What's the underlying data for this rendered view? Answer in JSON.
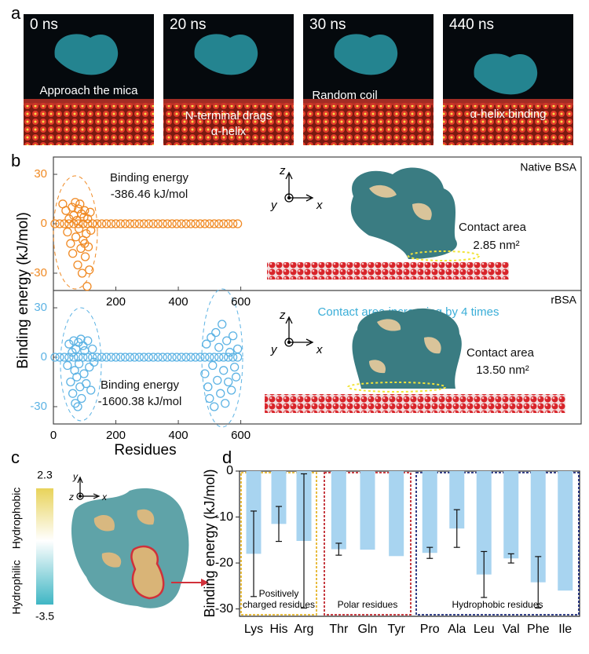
{
  "panel_a": {
    "label": "a",
    "frames": [
      {
        "time": "0 ns",
        "caption": [
          "Approach the mica"
        ]
      },
      {
        "time": "20 ns",
        "caption": [
          "N-terminal drags",
          "α-helix"
        ]
      },
      {
        "time": "30 ns",
        "caption": [
          "Random coil"
        ]
      },
      {
        "time": "440 ns",
        "caption": [
          "α-helix binding"
        ]
      }
    ]
  },
  "panel_b": {
    "label": "b",
    "ylabel": "Binding energy (kJ/mol)",
    "xlabel": "Residues",
    "axis_glyphs": [
      "z",
      "y",
      "x"
    ]
  },
  "panel_c": {
    "label": "c",
    "colorbar_max": "2.3",
    "colorbar_min": "-3.5",
    "top_label": "Hydrophobic",
    "bottom_label": "Hydrophilic",
    "axis_glyphs": [
      "y",
      "z",
      "x"
    ]
  },
  "panel_d": {
    "label": "d"
  },
  "chart_data": [
    {
      "type": "scatter",
      "name": "Native BSA",
      "energy_title": "Binding energy",
      "energy_value": "-386.46 kJ/mol",
      "contact_title": "Contact area",
      "contact_value": "2.85 nm²",
      "xlim": [
        0,
        1690
      ],
      "xticks": [
        200,
        400,
        600
      ],
      "ylim": [
        -40.5,
        40.5
      ],
      "yticks": [
        30,
        0,
        -30
      ],
      "series": [
        {
          "color": "#f08a24",
          "x": [
            5,
            20,
            35,
            50,
            65,
            80,
            95,
            110,
            125,
            140,
            155,
            170,
            185,
            200,
            215,
            230,
            245,
            260,
            275,
            290,
            305,
            320,
            335,
            350,
            365,
            380,
            395,
            410,
            425,
            440,
            455,
            470,
            485,
            500,
            515,
            530,
            545,
            560,
            575,
            590,
            30,
            40,
            45,
            50,
            55,
            60,
            62,
            65,
            70,
            72,
            75,
            78,
            80,
            82,
            85,
            88,
            90,
            92,
            95,
            98,
            100,
            102,
            105,
            108,
            110,
            112,
            115,
            118,
            120,
            100
          ],
          "values": [
            0,
            0,
            0,
            0,
            0,
            0,
            0,
            0,
            0,
            0,
            0,
            0,
            0,
            0,
            0,
            0,
            0,
            0,
            0,
            0,
            0,
            0,
            0,
            0,
            0,
            0,
            0,
            0,
            0,
            0,
            0,
            0,
            0,
            0,
            0,
            0,
            0,
            0,
            0,
            0,
            12,
            8,
            -5,
            3,
            -12,
            10,
            -18,
            5,
            13,
            -8,
            2,
            -25,
            9,
            -3,
            12,
            -15,
            6,
            -30,
            -10,
            4,
            8,
            -20,
            -6,
            -38,
            3,
            -14,
            -28,
            7,
            -4,
            -12
          ]
        }
      ]
    },
    {
      "type": "scatter",
      "name": "rBSA",
      "headline": "Contact area increasing by 4 times",
      "energy_title": "Binding energy",
      "energy_value": "-1600.38 kJ/mol",
      "contact_title": "Contact area",
      "contact_value": "13.50 nm²",
      "xlim": [
        0,
        1690
      ],
      "xticks": [
        0,
        200,
        400,
        600
      ],
      "ylim": [
        -40.5,
        40.5
      ],
      "yticks": [
        30,
        0,
        -30
      ],
      "series": [
        {
          "color": "#5db3e4",
          "x": [
            5,
            20,
            35,
            50,
            65,
            80,
            95,
            110,
            125,
            140,
            155,
            170,
            185,
            200,
            215,
            230,
            245,
            260,
            275,
            290,
            305,
            320,
            335,
            350,
            365,
            380,
            395,
            410,
            425,
            440,
            455,
            470,
            485,
            500,
            515,
            530,
            545,
            560,
            575,
            590,
            45,
            50,
            55,
            60,
            62,
            65,
            68,
            70,
            72,
            75,
            78,
            80,
            82,
            85,
            88,
            90,
            95,
            98,
            100,
            105,
            110,
            115,
            120,
            125,
            130,
            485,
            490,
            495,
            500,
            505,
            510,
            515,
            520,
            525,
            530,
            535,
            540,
            545,
            550,
            555,
            560,
            565,
            570,
            575,
            580,
            585,
            590
          ],
          "values": [
            0,
            0,
            0,
            0,
            0,
            0,
            0,
            0,
            0,
            0,
            0,
            0,
            0,
            0,
            0,
            0,
            0,
            0,
            0,
            0,
            0,
            0,
            0,
            0,
            0,
            0,
            0,
            0,
            0,
            0,
            0,
            0,
            0,
            0,
            0,
            0,
            0,
            0,
            0,
            0,
            -5,
            8,
            -15,
            3,
            -22,
            10,
            -8,
            -28,
            5,
            -12,
            -30,
            9,
            -4,
            -18,
            11,
            -25,
            7,
            -10,
            4,
            -16,
            10,
            -6,
            -20,
            5,
            -3,
            -10,
            8,
            -18,
            -25,
            12,
            -5,
            -30,
            15,
            -14,
            6,
            -22,
            20,
            -8,
            -28,
            10,
            -15,
            3,
            -20,
            13,
            -6,
            -12,
            5
          ]
        }
      ]
    },
    {
      "type": "bar",
      "ylabel": "Binding energy (kJ/mol)",
      "ylim": [
        -31.6,
        0
      ],
      "yticks": [
        0,
        -10,
        -20,
        -30
      ],
      "color": "#a8d4f0",
      "groups": [
        {
          "label": [
            "Positively",
            "charged residues"
          ],
          "border_color": "#e5b52a",
          "categories": [
            "Lys",
            "His",
            "Arg"
          ],
          "values": [
            -18,
            -11.5,
            -15.2
          ],
          "errors": [
            9.3,
            3.8,
            14.6
          ]
        },
        {
          "label": [
            "Polar residues"
          ],
          "border_color": "#c0262d",
          "categories": [
            "Thr",
            "Gln",
            "Tyr"
          ],
          "values": [
            -17,
            -17.1,
            -18.5
          ],
          "errors": [
            1.3,
            null,
            null
          ]
        },
        {
          "label": [
            "Hydrophobic residues"
          ],
          "border_color": "#1b2a7a",
          "categories": [
            "Pro",
            "Ala",
            "Leu",
            "Val",
            "Phe",
            "Ile"
          ],
          "values": [
            -17.8,
            -12.5,
            -22.5,
            -19,
            -24.2,
            -26
          ],
          "errors": [
            1.2,
            4.1,
            5,
            1,
            5.6,
            null
          ]
        }
      ]
    }
  ]
}
